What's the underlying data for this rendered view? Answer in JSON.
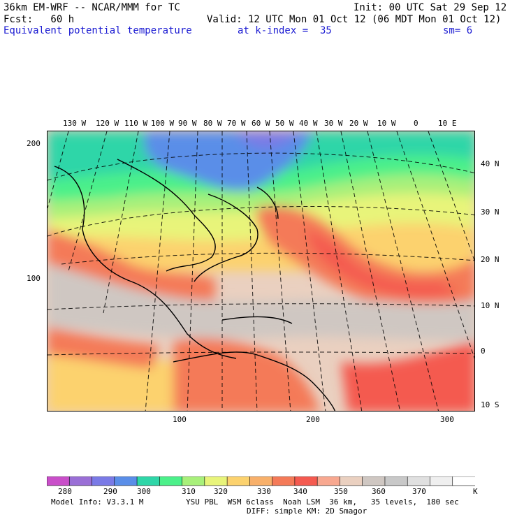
{
  "header": {
    "model_title": "36km EM-WRF -- NCAR/MMM for TC",
    "init": "Init: 00 UTC Sat 29 Sep 12",
    "forecast": "Fcst:   60 h",
    "valid": "Valid: 12 UTC Mon 01 Oct 12 (06 MDT Mon 01 Oct 12)",
    "field": "Equivalent potential temperature",
    "level": "at k-index =  35",
    "smoothing": "sm= 6"
  },
  "axes": {
    "top_longitudes": [
      "130 W",
      "120 W",
      "110 W",
      "100 W",
      "90 W",
      "80 W",
      "70 W",
      "60 W",
      "50 W",
      "40 W",
      "30 W",
      "20 W",
      "10 W",
      "0",
      "10 E"
    ],
    "right_latitudes": [
      "40 N",
      "30 N",
      "20 N",
      "10 N",
      "0",
      "10 S"
    ],
    "left_grid": [
      "200",
      "100"
    ],
    "bottom_grid": [
      "100",
      "200",
      "300"
    ]
  },
  "legend": {
    "values": [
      "280",
      "290",
      "300",
      "310",
      "320",
      "330",
      "340",
      "350",
      "360",
      "370"
    ],
    "unit": "K",
    "colors": [
      "#c94fc9",
      "#9a6fd6",
      "#7a7ae6",
      "#5a8ee8",
      "#2fd6a8",
      "#4cf08a",
      "#a8f07a",
      "#e8f47a",
      "#fcd26e",
      "#f8b06a",
      "#f47a58",
      "#f45a50",
      "#f8a890",
      "#ead0c0",
      "#cfc7c2",
      "#c8c8c8",
      "#e0e0e0",
      "#efefef",
      "#ffffff"
    ]
  },
  "footer": {
    "model_info": "Model Info: V3.3.1 M",
    "physics": "YSU PBL  WSM 6class  Noah LSM  36 km,   35 levels,  180 sec",
    "diffusion": "DIFF: simple KM: 2D Smagor"
  }
}
